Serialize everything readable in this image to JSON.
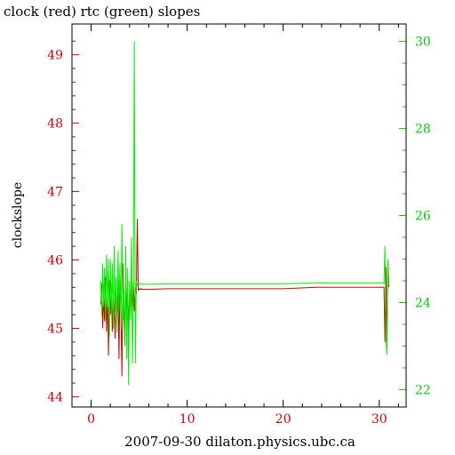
{
  "chart_data": {
    "type": "line",
    "title": "clock (red) rtc (green) slopes",
    "xlabel": "2007-09-30 dilaton.physics.ubc.ca",
    "ylabel": "clockslope",
    "ylabel_right": "",
    "xlim": [
      -2,
      32.8
    ],
    "ylim": [
      43.85,
      49.45
    ],
    "ylim_right": [
      21.6,
      30.4
    ],
    "x_ticks": [
      0,
      10,
      20,
      30
    ],
    "x_tick_labels": [
      "0",
      "10",
      "20",
      "30"
    ],
    "y_ticks": [
      44,
      45,
      46,
      47,
      48,
      49
    ],
    "y_tick_labels": [
      "44",
      "45",
      "46",
      "47",
      "48",
      "49"
    ],
    "y_ticks_right": [
      22,
      24,
      26,
      28,
      30
    ],
    "y_tick_labels_right": [
      "22",
      "24",
      "26",
      "28",
      "30"
    ],
    "grid": false,
    "legend": "none",
    "colors": {
      "clock": "#cc0000",
      "rtc": "#00ee00",
      "left_axis": "#cc0000",
      "right_axis": "#00cc00",
      "frame": "#000000",
      "text": "#000000"
    },
    "series": [
      {
        "name": "clock",
        "axis": "left",
        "color": "#cc0000",
        "x": [
          1.0,
          1.1,
          1.2,
          1.3,
          1.4,
          1.5,
          1.6,
          1.7,
          1.8,
          1.9,
          2.0,
          2.1,
          2.2,
          2.3,
          2.4,
          2.5,
          2.6,
          2.7,
          2.8,
          2.9,
          3.0,
          3.1,
          3.2,
          3.3,
          3.4,
          3.5,
          3.6,
          3.7,
          3.8,
          3.9,
          4.0,
          4.1,
          4.2,
          4.3,
          4.4,
          4.5,
          4.6,
          4.7,
          4.8,
          4.9,
          5.0,
          5.1,
          5.2,
          5.3,
          6.0,
          8.0,
          10.0,
          15.0,
          20.0,
          23.5,
          25.0,
          28.0,
          30.5,
          30.6,
          30.7,
          30.8,
          30.9,
          31.0
        ],
        "values": [
          45.35,
          45.65,
          45.0,
          45.5,
          45.1,
          45.75,
          44.95,
          45.5,
          44.6,
          45.7,
          45.2,
          45.6,
          44.95,
          45.55,
          45.3,
          44.85,
          45.7,
          45.1,
          45.6,
          44.55,
          45.75,
          45.3,
          44.3,
          45.95,
          45.2,
          44.8,
          45.6,
          45.3,
          45.7,
          44.95,
          45.5,
          45.2,
          45.6,
          45.3,
          45.7,
          45.25,
          45.6,
          45.5,
          46.6,
          45.55,
          45.58,
          45.57,
          45.58,
          45.57,
          45.57,
          45.58,
          45.58,
          45.58,
          45.58,
          45.6,
          45.6,
          45.6,
          45.6,
          44.8,
          45.9,
          44.75,
          46.0,
          45.6
        ]
      },
      {
        "name": "rtc",
        "axis": "right",
        "color": "#00ee00",
        "x": [
          1.0,
          1.1,
          1.2,
          1.3,
          1.4,
          1.5,
          1.6,
          1.7,
          1.8,
          1.9,
          2.0,
          2.1,
          2.2,
          2.3,
          2.4,
          2.5,
          2.6,
          2.7,
          2.8,
          2.9,
          3.0,
          3.1,
          3.2,
          3.3,
          3.4,
          3.5,
          3.6,
          3.7,
          3.8,
          3.9,
          4.0,
          4.1,
          4.2,
          4.3,
          4.4,
          4.5,
          4.6,
          4.7,
          4.8,
          4.9,
          5.0,
          5.1,
          5.2,
          5.3,
          6.0,
          8.0,
          10.0,
          15.0,
          20.0,
          23.5,
          25.0,
          28.0,
          30.5,
          30.6,
          30.7,
          30.8,
          30.9,
          31.0
        ],
        "values": [
          24.5,
          23.7,
          24.9,
          23.9,
          24.8,
          23.6,
          25.1,
          23.9,
          25.0,
          23.2,
          25.0,
          23.8,
          24.9,
          23.4,
          25.3,
          23.7,
          24.6,
          23.3,
          25.2,
          23.8,
          24.9,
          23.4,
          25.8,
          23.6,
          24.3,
          23.0,
          25.3,
          22.7,
          24.8,
          22.1,
          24.5,
          23.6,
          25.5,
          22.6,
          24.4,
          30.0,
          22.6,
          24.5,
          24.4,
          24.42,
          24.42,
          24.43,
          24.43,
          24.42,
          24.42,
          24.43,
          24.43,
          24.43,
          24.43,
          24.45,
          24.45,
          24.45,
          24.45,
          25.3,
          23.2,
          22.8,
          25.0,
          24.4
        ]
      }
    ]
  }
}
